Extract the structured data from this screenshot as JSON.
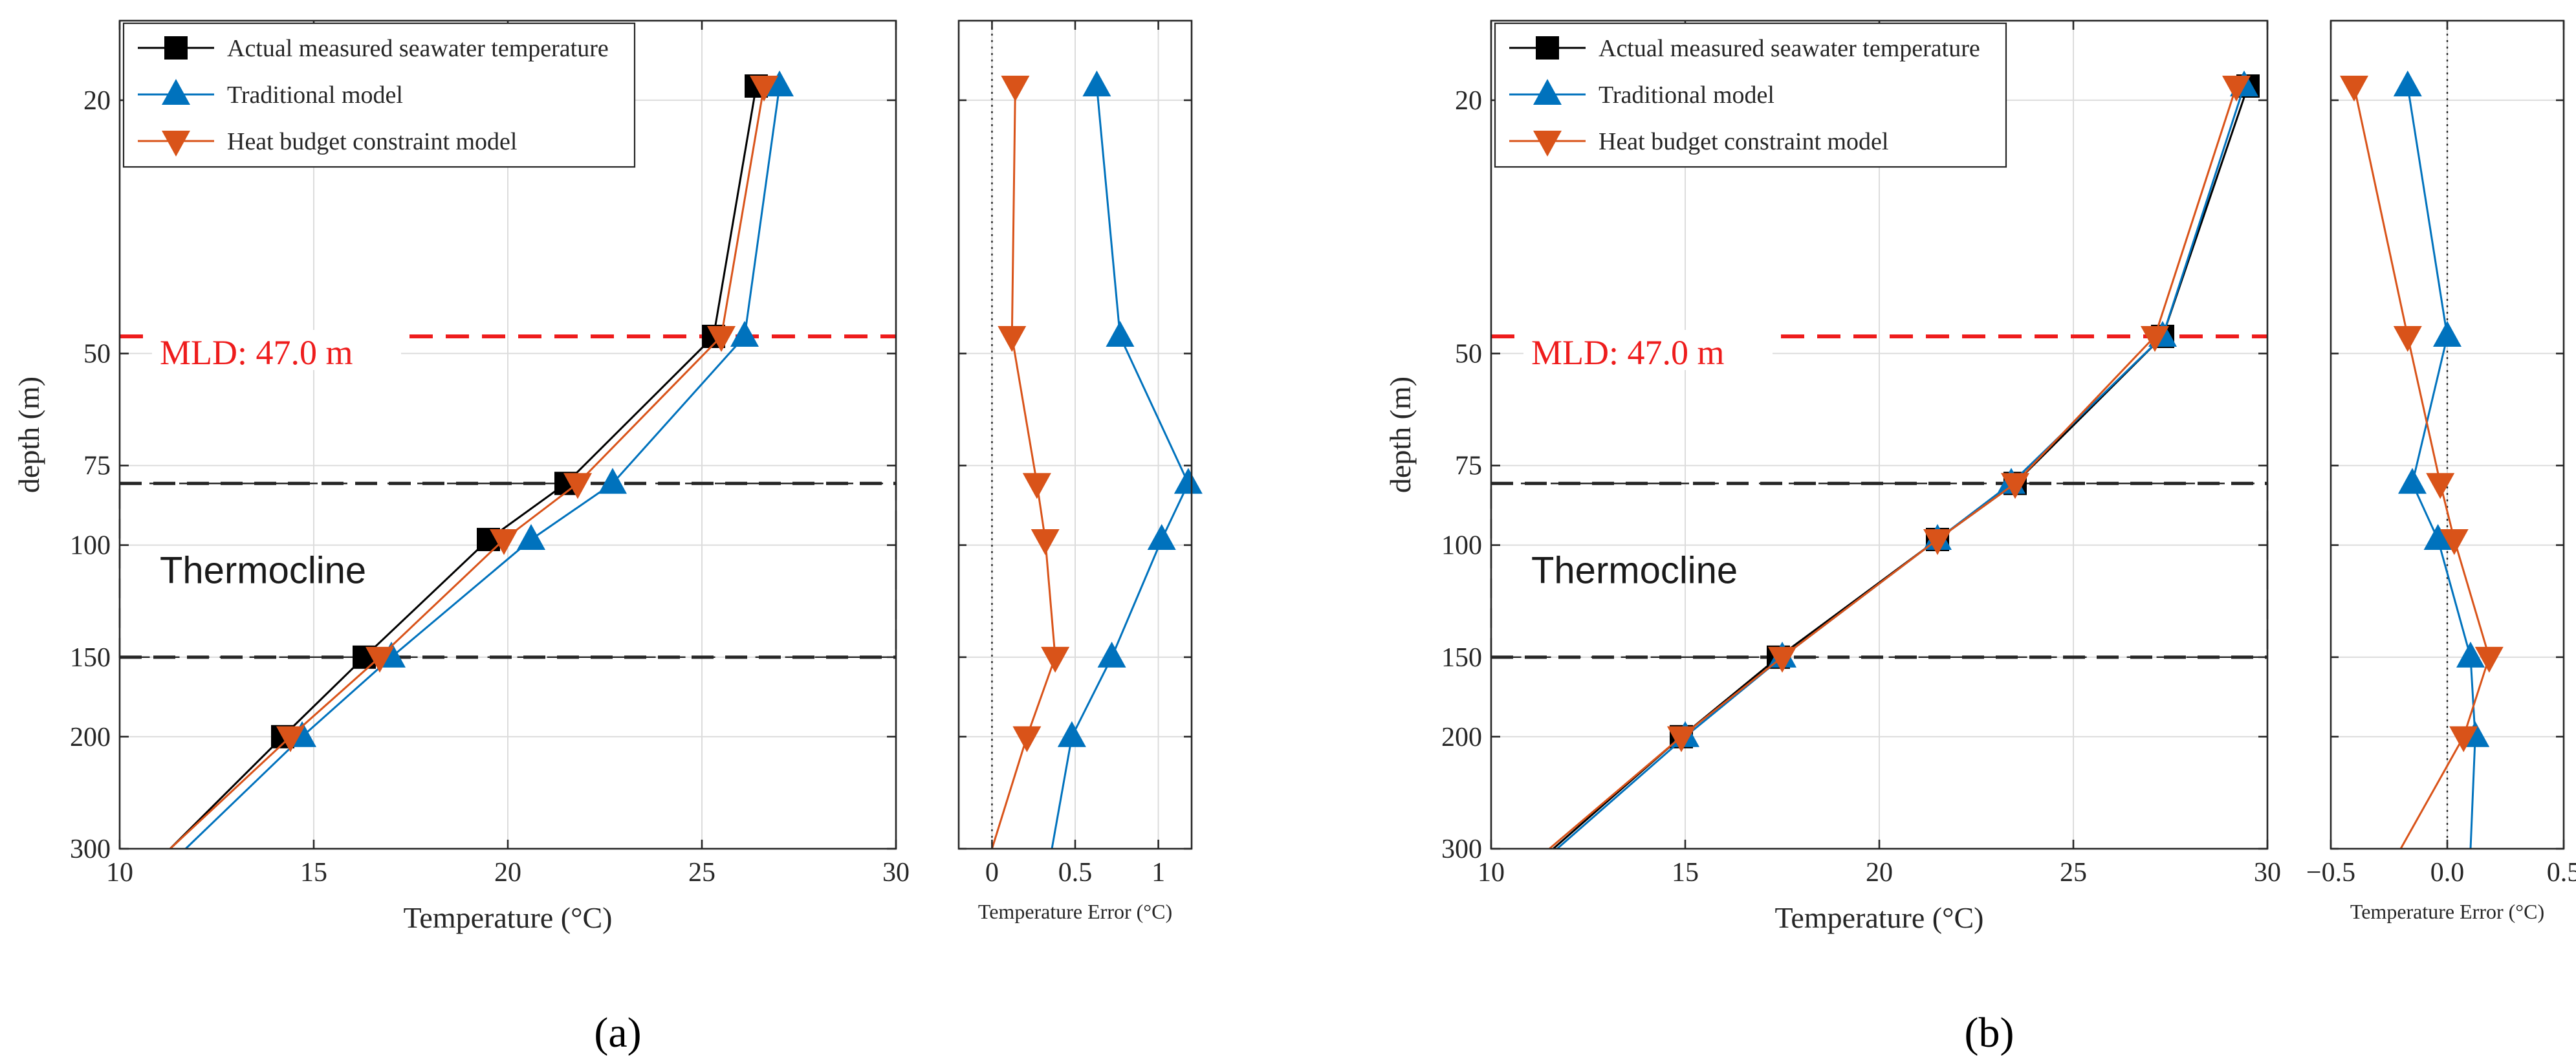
{
  "colors": {
    "measured": "#000000",
    "traditional": "#0072BD",
    "heat_budget": "#D95319",
    "mld_line": "#ee1c1c",
    "thermocline_box": "#262626"
  },
  "chart_data": [
    {
      "panel": "a",
      "type": "line",
      "xlabel": "Temperature (°C)",
      "ylabel": "depth (m)",
      "xlim": [
        10,
        30
      ],
      "xticks": [
        10,
        15,
        20,
        25,
        30
      ],
      "yaxis_scale": "log",
      "ylim": [
        15,
        300
      ],
      "yticks": [
        20,
        50,
        75,
        100,
        150,
        200,
        300
      ],
      "grid": true,
      "reversed_y": true,
      "legend": {
        "placement": "top-left",
        "entries": [
          "Actual measured seawater temperature",
          "Traditional model",
          "Heat budget constraint model"
        ]
      },
      "series": [
        {
          "name": "Actual measured seawater temperature",
          "marker": "square",
          "points": [
            [
              26.4,
              19
            ],
            [
              25.3,
              47
            ],
            [
              21.5,
              80
            ],
            [
              19.5,
              98
            ],
            [
              16.3,
              150
            ],
            [
              14.2,
              200
            ],
            [
              11.3,
              300
            ]
          ]
        },
        {
          "name": "Traditional model",
          "marker": "triangle-up",
          "points": [
            [
              27.0,
              19
            ],
            [
              26.1,
              47
            ],
            [
              22.7,
              80
            ],
            [
              20.6,
              98
            ],
            [
              17.0,
              150
            ],
            [
              14.7,
              200
            ],
            [
              11.7,
              300
            ]
          ]
        },
        {
          "name": "Heat budget constraint model",
          "marker": "triangle-down",
          "points": [
            [
              26.6,
              19
            ],
            [
              25.5,
              47
            ],
            [
              21.8,
              80
            ],
            [
              19.9,
              98
            ],
            [
              16.7,
              150
            ],
            [
              14.4,
              200
            ],
            [
              11.3,
              300
            ]
          ]
        }
      ],
      "mld": {
        "depth": 47,
        "label": "MLD: 47.0 m"
      },
      "thermocline": {
        "top": 80,
        "bottom": 150,
        "label": "Thermocline"
      },
      "error_panel": {
        "xlabel": "Temperature Error (°C)",
        "xlim": [
          -0.2,
          1.2
        ],
        "xticks": [
          0,
          0.5,
          1
        ],
        "xtick_labels": [
          "0",
          "0.5",
          "1"
        ],
        "zero_line": 0,
        "series": [
          {
            "name": "Traditional model",
            "marker": "triangle-up",
            "points": [
              [
                0.63,
                19
              ],
              [
                0.77,
                47
              ],
              [
                1.18,
                80
              ],
              [
                1.02,
                98
              ],
              [
                0.72,
                150
              ],
              [
                0.48,
                200
              ],
              [
                0.36,
                300
              ]
            ]
          },
          {
            "name": "Heat budget constraint model",
            "marker": "triangle-down",
            "points": [
              [
                0.14,
                19
              ],
              [
                0.12,
                47
              ],
              [
                0.27,
                80
              ],
              [
                0.32,
                98
              ],
              [
                0.38,
                150
              ],
              [
                0.21,
                200
              ],
              [
                0.0,
                300
              ]
            ]
          }
        ]
      }
    },
    {
      "panel": "b",
      "type": "line",
      "xlabel": "Temperature (°C)",
      "ylabel": "depth (m)",
      "xlim": [
        10,
        30
      ],
      "xticks": [
        10,
        15,
        20,
        25,
        30
      ],
      "yaxis_scale": "log",
      "ylim": [
        15,
        300
      ],
      "yticks": [
        20,
        50,
        75,
        100,
        150,
        200,
        300
      ],
      "grid": true,
      "reversed_y": true,
      "legend": {
        "placement": "top-left",
        "entries": [
          "Actual measured seawater temperature",
          "Traditional model",
          "Heat budget constraint model"
        ]
      },
      "series": [
        {
          "name": "Actual measured seawater temperature",
          "marker": "square",
          "points": [
            [
              29.5,
              19
            ],
            [
              27.3,
              47
            ],
            [
              23.5,
              80
            ],
            [
              21.5,
              98
            ],
            [
              17.4,
              150
            ],
            [
              14.9,
              200
            ],
            [
              11.6,
              300
            ]
          ]
        },
        {
          "name": "Traditional model",
          "marker": "triangle-up",
          "points": [
            [
              29.4,
              19
            ],
            [
              27.3,
              47
            ],
            [
              23.4,
              80
            ],
            [
              21.5,
              98
            ],
            [
              17.5,
              150
            ],
            [
              15.0,
              200
            ],
            [
              11.7,
              300
            ]
          ]
        },
        {
          "name": "Heat budget constraint model",
          "marker": "triangle-down",
          "points": [
            [
              29.2,
              19
            ],
            [
              27.1,
              47
            ],
            [
              23.5,
              80
            ],
            [
              21.5,
              98
            ],
            [
              17.5,
              150
            ],
            [
              14.9,
              200
            ],
            [
              11.5,
              300
            ]
          ]
        }
      ],
      "mld": {
        "depth": 47,
        "label": "MLD: 47.0 m"
      },
      "thermocline": {
        "top": 80,
        "bottom": 150,
        "label": "Thermocline"
      },
      "error_panel": {
        "xlabel": "Temperature Error (°C)",
        "xlim": [
          -0.5,
          0.5
        ],
        "xticks": [
          -0.5,
          0,
          0.5
        ],
        "xtick_labels": [
          "−0.5",
          "0.0",
          "0.5"
        ],
        "zero_line": 0,
        "series": [
          {
            "name": "Traditional model",
            "marker": "triangle-up",
            "points": [
              [
                -0.17,
                19
              ],
              [
                0.0,
                47
              ],
              [
                -0.15,
                80
              ],
              [
                -0.04,
                98
              ],
              [
                0.1,
                150
              ],
              [
                0.12,
                200
              ],
              [
                0.1,
                300
              ]
            ]
          },
          {
            "name": "Heat budget constraint model",
            "marker": "triangle-down",
            "points": [
              [
                -0.4,
                19
              ],
              [
                -0.17,
                47
              ],
              [
                -0.03,
                80
              ],
              [
                0.03,
                98
              ],
              [
                0.18,
                150
              ],
              [
                0.07,
                200
              ],
              [
                -0.2,
                300
              ]
            ]
          }
        ]
      }
    }
  ],
  "panel_labels": [
    "(a)",
    "(b)"
  ]
}
